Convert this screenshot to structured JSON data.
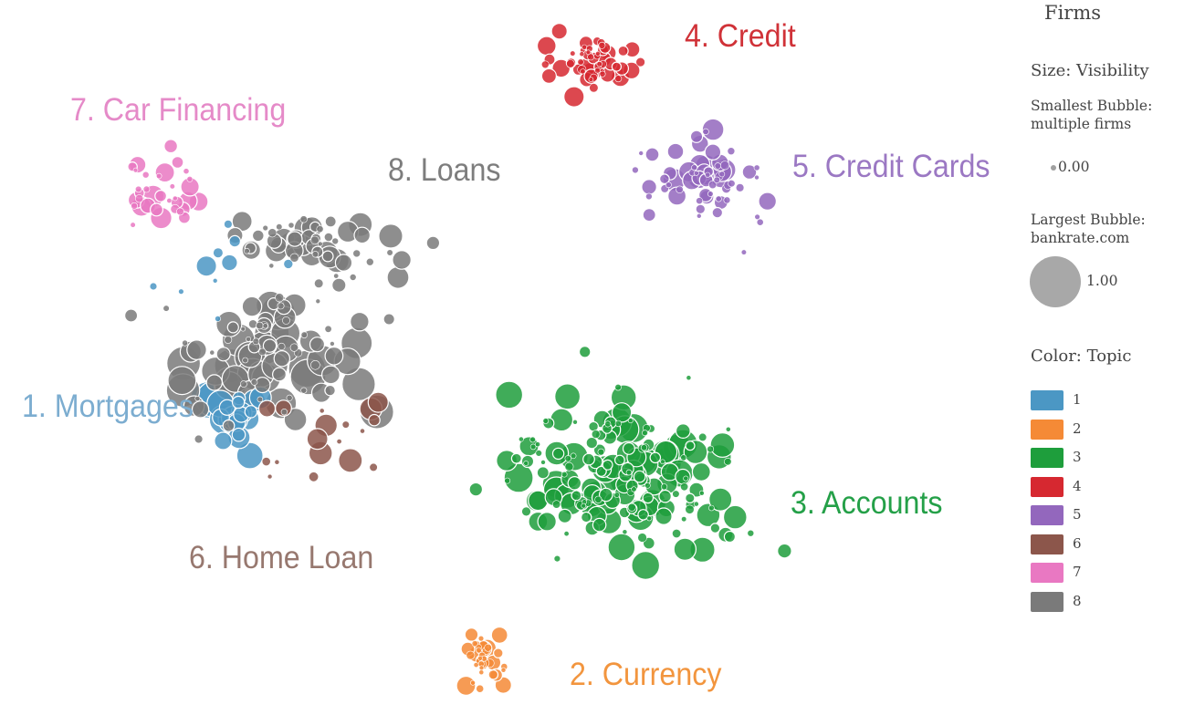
{
  "chart_data": {
    "type": "scatter",
    "title": "",
    "xlabel": "",
    "ylabel": "",
    "cluster_labels": [
      {
        "text": "1. Mortgages",
        "topic": 1
      },
      {
        "text": "2. Currency",
        "topic": 2
      },
      {
        "text": "3. Accounts",
        "topic": 3
      },
      {
        "text": "4. Credit",
        "topic": 4
      },
      {
        "text": "5. Credit Cards",
        "topic": 5
      },
      {
        "text": "6. Home Loan",
        "topic": 6
      },
      {
        "text": "7. Car Financing",
        "topic": 7
      },
      {
        "text": "8. Loans",
        "topic": 8
      }
    ],
    "topic_colors": {
      "1": "#4b97c4",
      "2": "#f58a36",
      "3": "#1e9e3c",
      "4": "#d62830",
      "5": "#9367bd",
      "6": "#8c564b",
      "7": "#e978c2",
      "8": "#7a7a7a"
    },
    "size_range": [
      0.0,
      1.0
    ],
    "bubble_clusters": [
      {
        "topic": 1,
        "center": [
          255,
          455
        ],
        "spread": [
          25,
          20
        ],
        "count": 22,
        "min_v": 0.02,
        "max_v": 0.55
      },
      {
        "topic": 1,
        "center": [
          250,
          300
        ],
        "spread": [
          60,
          45
        ],
        "count": 10,
        "min_v": 0.0,
        "max_v": 0.12
      },
      {
        "topic": 2,
        "center": [
          530,
          725
        ],
        "spread": [
          14,
          18
        ],
        "count": 38,
        "min_v": 0.0,
        "max_v": 0.1
      },
      {
        "topic": 3,
        "center": [
          680,
          520
        ],
        "spread": [
          85,
          55
        ],
        "count": 190,
        "min_v": 0.0,
        "max_v": 0.3
      },
      {
        "topic": 4,
        "center": [
          655,
          70
        ],
        "spread": [
          30,
          20
        ],
        "count": 55,
        "min_v": 0.0,
        "max_v": 0.12
      },
      {
        "topic": 5,
        "center": [
          775,
          200
        ],
        "spread": [
          40,
          30
        ],
        "count": 65,
        "min_v": 0.0,
        "max_v": 0.15
      },
      {
        "topic": 6,
        "center": [
          350,
          480
        ],
        "spread": [
          55,
          35
        ],
        "count": 18,
        "min_v": 0.0,
        "max_v": 0.2
      },
      {
        "topic": 7,
        "center": [
          175,
          210
        ],
        "spread": [
          30,
          25
        ],
        "count": 34,
        "min_v": 0.0,
        "max_v": 0.15
      },
      {
        "topic": 8,
        "center": [
          290,
          385
        ],
        "spread": [
          65,
          45
        ],
        "count": 95,
        "min_v": 0.0,
        "max_v": 0.5
      },
      {
        "topic": 8,
        "center": [
          345,
          265
        ],
        "spread": [
          55,
          30
        ],
        "count": 55,
        "min_v": 0.0,
        "max_v": 0.2
      }
    ],
    "legend": {
      "title": "Firms",
      "size_title": "Size: Visibility",
      "smallest_label_1": "Smallest Bubble:",
      "smallest_label_2": "multiple firms",
      "smallest_value": "0.00",
      "largest_label_1": "Largest Bubble:",
      "largest_label_2": "bankrate.com",
      "largest_value": "1.00",
      "color_title": "Color: Topic",
      "topics": [
        "1",
        "2",
        "3",
        "4",
        "5",
        "6",
        "7",
        "8"
      ]
    }
  }
}
